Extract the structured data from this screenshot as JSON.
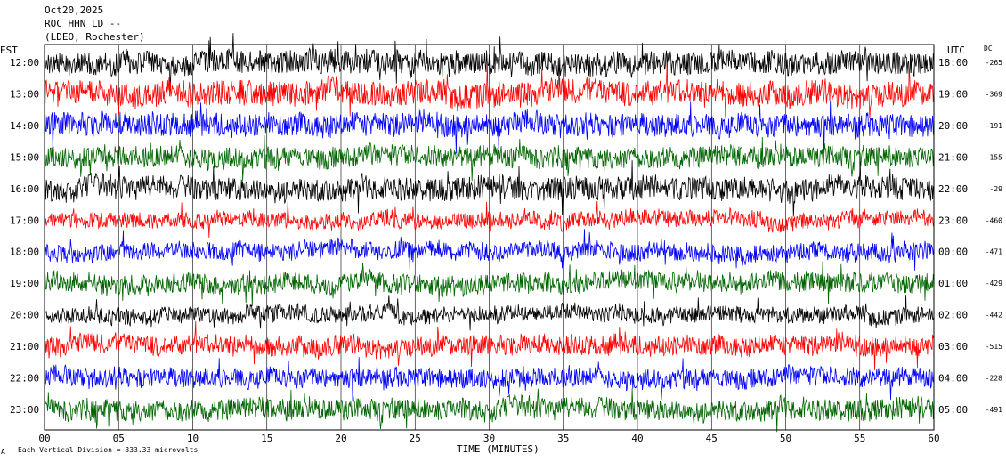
{
  "header": {
    "date": "Oct20,2025",
    "station": "ROC HHN LD --",
    "location": "(LDEO, Rochester)"
  },
  "labels": {
    "left_zone": "EST",
    "right_zone": "UTC",
    "dc_header": "DC",
    "x_title": "TIME (MINUTES)",
    "scale_note": "Each Vertical Division =  333.33 microvolts",
    "corner_mark": "A"
  },
  "chart_data": {
    "type": "line",
    "title": "",
    "xlabel": "TIME (MINUTES)",
    "ylabel": "",
    "xlim": [
      0,
      60
    ],
    "x_ticks": [
      "00",
      "05",
      "10",
      "15",
      "20",
      "25",
      "30",
      "35",
      "40",
      "45",
      "50",
      "55",
      "60"
    ],
    "grid": true,
    "trace_colors": [
      "#000000",
      "#ff0000",
      "#0000ff",
      "#006400"
    ],
    "rows": [
      {
        "local": "12:00",
        "utc": "18:00",
        "dc": "-265",
        "color": "#000000",
        "amp": 13
      },
      {
        "local": "13:00",
        "utc": "19:00",
        "dc": "-369",
        "color": "#ff0000",
        "amp": 14
      },
      {
        "local": "14:00",
        "utc": "20:00",
        "dc": "-191",
        "color": "#0000ff",
        "amp": 13
      },
      {
        "local": "15:00",
        "utc": "21:00",
        "dc": "-155",
        "color": "#006400",
        "amp": 12
      },
      {
        "local": "16:00",
        "utc": "22:00",
        "dc": "-29",
        "color": "#000000",
        "amp": 13
      },
      {
        "local": "17:00",
        "utc": "23:00",
        "dc": "-460",
        "color": "#ff0000",
        "amp": 9
      },
      {
        "local": "18:00",
        "utc": "00:00",
        "dc": "-471",
        "color": "#0000ff",
        "amp": 10
      },
      {
        "local": "19:00",
        "utc": "01:00",
        "dc": "-429",
        "color": "#006400",
        "amp": 11
      },
      {
        "local": "20:00",
        "utc": "02:00",
        "dc": "-442",
        "color": "#000000",
        "amp": 9
      },
      {
        "local": "21:00",
        "utc": "03:00",
        "dc": "-515",
        "color": "#ff0000",
        "amp": 11
      },
      {
        "local": "22:00",
        "utc": "04:00",
        "dc": "-228",
        "color": "#0000ff",
        "amp": 11
      },
      {
        "local": "23:00",
        "utc": "05:00",
        "dc": "-491",
        "color": "#006400",
        "amp": 12
      }
    ]
  }
}
